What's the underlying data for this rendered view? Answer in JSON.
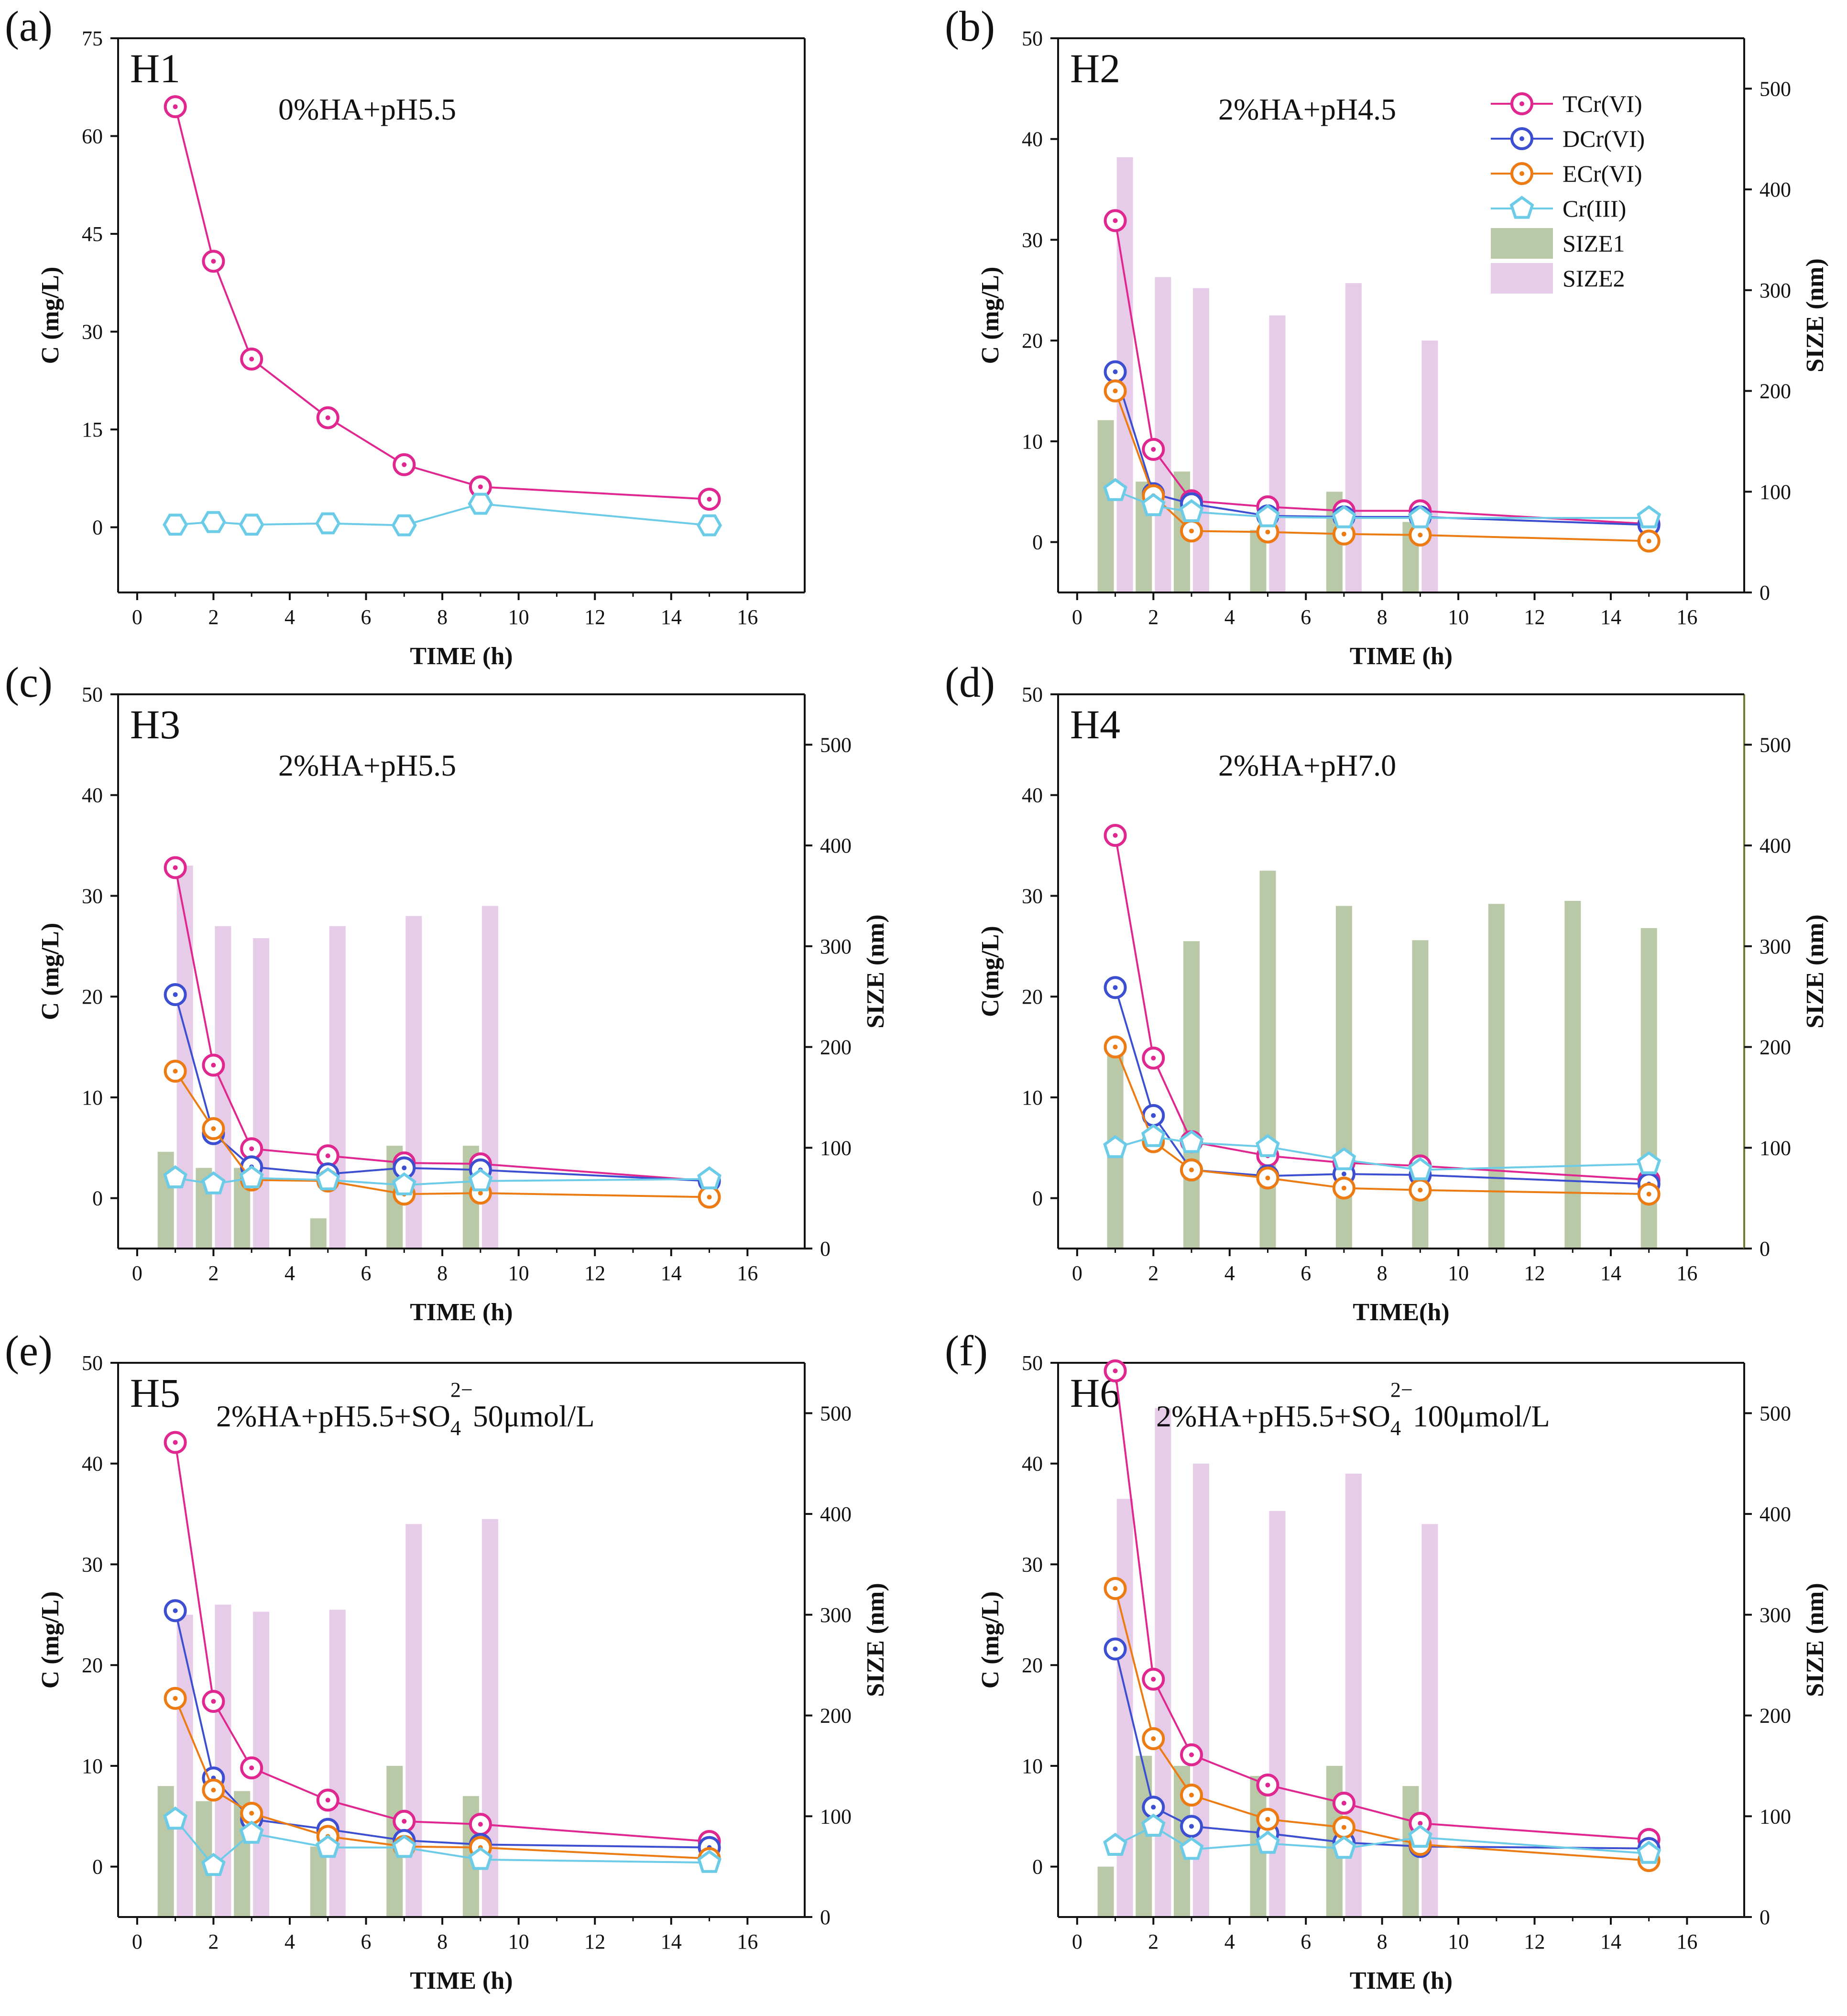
{
  "colors": {
    "TCr": "#e0268f",
    "DCr": "#3b4fd0",
    "ECr": "#ec7b14",
    "Cr3": "#6ccbe6",
    "SIZE1": "#b9c8a6",
    "SIZE2": "#e6cce8",
    "axis": "#111111"
  },
  "legend": {
    "TCr": "TCr(VI)",
    "DCr": "DCr(VI)",
    "ECr": "ECr(VI)",
    "Cr3": "Cr(III)",
    "SIZE1": "SIZE1",
    "SIZE2": "SIZE2"
  },
  "chart_data": [
    {
      "type": "line",
      "letter": "(a)",
      "tag": "H1",
      "condition": "0%HA+pH5.5",
      "xlabel": "TIME (h)",
      "ylabel": "C (mg/L)",
      "xlim": [
        -0.5,
        17.5
      ],
      "ylim": [
        -10,
        75
      ],
      "xticks": [
        "0",
        "2",
        "4",
        "6",
        "8",
        "10",
        "12",
        "14",
        "16"
      ],
      "yticks": [
        "0",
        "15",
        "30",
        "45",
        "60",
        "75"
      ],
      "has_right_axis": false,
      "series": [
        {
          "key": "TCr",
          "name": "TCr(VI)",
          "marker": "circle",
          "x": [
            1,
            2,
            3,
            5,
            7,
            9,
            15
          ],
          "y": [
            64.5,
            40.8,
            25.8,
            16.8,
            9.6,
            6.2,
            4.3
          ]
        },
        {
          "key": "Cr3",
          "name": "Cr(III)",
          "marker": "hexagon",
          "x": [
            1,
            2,
            3,
            5,
            7,
            9,
            15
          ],
          "y": [
            0.4,
            0.8,
            0.4,
            0.6,
            0.3,
            3.6,
            0.3
          ]
        }
      ],
      "bars": []
    },
    {
      "type": "line+bar",
      "letter": "(b)",
      "tag": "H2",
      "condition": "2%HA+pH4.5",
      "xlabel": "TIME (h)",
      "ylabel": "C (mg/L)",
      "ylabel_right": "SIZE (nm)",
      "xlim": [
        -0.5,
        17.5
      ],
      "ylim": [
        -5,
        50
      ],
      "ylim_right": [
        0,
        550
      ],
      "xticks": [
        "0",
        "2",
        "4",
        "6",
        "8",
        "10",
        "12",
        "14",
        "16"
      ],
      "yticks": [
        "0",
        "10",
        "20",
        "30",
        "40",
        "50"
      ],
      "yticks_right": [
        "0",
        "100",
        "200",
        "300",
        "400",
        "500"
      ],
      "has_right_axis": true,
      "show_legend": true,
      "series": [
        {
          "key": "TCr",
          "name": "TCr(VI)",
          "marker": "circle",
          "x": [
            1,
            2,
            3,
            5,
            7,
            9,
            15
          ],
          "y": [
            31.9,
            9.2,
            4.1,
            3.5,
            3.1,
            3.1,
            1.8
          ]
        },
        {
          "key": "DCr",
          "name": "DCr(VI)",
          "marker": "circle",
          "x": [
            1,
            2,
            3,
            5,
            7,
            9,
            15
          ],
          "y": [
            16.9,
            4.8,
            3.8,
            2.6,
            2.5,
            2.5,
            1.7
          ]
        },
        {
          "key": "ECr",
          "name": "ECr(VI)",
          "marker": "circle",
          "x": [
            1,
            2,
            3,
            5,
            7,
            9,
            15
          ],
          "y": [
            15.0,
            4.6,
            1.1,
            1.0,
            0.8,
            0.7,
            0.1
          ]
        },
        {
          "key": "Cr3",
          "name": "Cr(III)",
          "marker": "pentagon",
          "x": [
            1,
            2,
            3,
            5,
            7,
            9,
            15
          ],
          "y": [
            5.1,
            3.6,
            3.0,
            2.5,
            2.4,
            2.4,
            2.4
          ]
        }
      ],
      "bars": [
        {
          "key": "SIZE1",
          "name": "SIZE1",
          "x": [
            1,
            2,
            3,
            5,
            7,
            9
          ],
          "values": [
            171,
            110,
            120,
            62,
            100,
            70
          ]
        },
        {
          "key": "SIZE2",
          "name": "SIZE2",
          "x": [
            1,
            2,
            3,
            5,
            7,
            9
          ],
          "values": [
            432,
            313,
            302,
            275,
            307,
            250
          ]
        }
      ]
    },
    {
      "type": "line+bar",
      "letter": "(c)",
      "tag": "H3",
      "condition": "2%HA+pH5.5",
      "xlabel": "TIME (h)",
      "ylabel": "C (mg/L)",
      "ylabel_right": "SIZE (nm)",
      "xlim": [
        -0.5,
        17.5
      ],
      "ylim": [
        -5,
        50
      ],
      "ylim_right": [
        0,
        550
      ],
      "xticks": [
        "0",
        "2",
        "4",
        "6",
        "8",
        "10",
        "12",
        "14",
        "16"
      ],
      "yticks": [
        "0",
        "10",
        "20",
        "30",
        "40",
        "50"
      ],
      "yticks_right": [
        "0",
        "100",
        "200",
        "300",
        "400",
        "500"
      ],
      "has_right_axis": true,
      "series": [
        {
          "key": "TCr",
          "name": "TCr(VI)",
          "marker": "circle",
          "x": [
            1,
            2,
            3,
            5,
            7,
            9,
            15
          ],
          "y": [
            32.8,
            13.2,
            4.9,
            4.2,
            3.5,
            3.4,
            1.7
          ]
        },
        {
          "key": "DCr",
          "name": "DCr(VI)",
          "marker": "circle",
          "x": [
            1,
            2,
            3,
            5,
            7,
            9,
            15
          ],
          "y": [
            20.2,
            6.4,
            3.1,
            2.4,
            3.0,
            2.8,
            1.7
          ]
        },
        {
          "key": "ECr",
          "name": "ECr(VI)",
          "marker": "circle",
          "x": [
            1,
            2,
            3,
            5,
            7,
            9,
            15
          ],
          "y": [
            12.6,
            6.9,
            1.8,
            1.7,
            0.4,
            0.5,
            0.1
          ]
        },
        {
          "key": "Cr3",
          "name": "Cr(III)",
          "marker": "pentagon",
          "x": [
            1,
            2,
            3,
            5,
            7,
            9,
            15
          ],
          "y": [
            2.0,
            1.4,
            2.0,
            1.8,
            1.3,
            1.7,
            1.9
          ]
        }
      ],
      "bars": [
        {
          "key": "SIZE1",
          "name": "SIZE1",
          "x": [
            1,
            2,
            3,
            5,
            7,
            9
          ],
          "values": [
            96,
            80,
            80,
            30,
            102,
            102
          ]
        },
        {
          "key": "SIZE2",
          "name": "SIZE2",
          "x": [
            1,
            2,
            3,
            5,
            7,
            9
          ],
          "values": [
            380,
            320,
            308,
            320,
            330,
            340
          ]
        }
      ]
    },
    {
      "type": "line+bar",
      "letter": "(d)",
      "tag": "H4",
      "condition": "2%HA+pH7.0",
      "xlabel": "TIME(h)",
      "ylabel": "C(mg/L)",
      "ylabel_right": "SIZE (nm)",
      "xlim": [
        -0.5,
        17.5
      ],
      "ylim": [
        -5,
        50
      ],
      "ylim_right": [
        0,
        550
      ],
      "xticks": [
        "0",
        "2",
        "4",
        "6",
        "8",
        "10",
        "12",
        "14",
        "16"
      ],
      "yticks": [
        "0",
        "10",
        "20",
        "30",
        "40",
        "50"
      ],
      "yticks_right": [
        "0",
        "100",
        "200",
        "300",
        "400",
        "500"
      ],
      "has_right_axis": true,
      "series": [
        {
          "key": "TCr",
          "name": "TCr(VI)",
          "marker": "circle",
          "x": [
            1,
            2,
            3,
            5,
            7,
            9,
            15
          ],
          "y": [
            36.0,
            13.9,
            5.6,
            4.2,
            3.5,
            3.2,
            1.8
          ]
        },
        {
          "key": "DCr",
          "name": "DCr(VI)",
          "marker": "circle",
          "x": [
            1,
            2,
            3,
            5,
            7,
            9,
            15
          ],
          "y": [
            20.9,
            8.2,
            2.8,
            2.2,
            2.4,
            2.3,
            1.4
          ]
        },
        {
          "key": "ECr",
          "name": "ECr(VI)",
          "marker": "circle",
          "x": [
            1,
            2,
            3,
            5,
            7,
            9,
            15
          ],
          "y": [
            15.0,
            5.6,
            2.8,
            2.0,
            1.0,
            0.8,
            0.4
          ]
        },
        {
          "key": "Cr3",
          "name": "Cr(III)",
          "marker": "pentagon",
          "x": [
            1,
            2,
            3,
            5,
            7,
            9,
            15
          ],
          "y": [
            5.0,
            6.1,
            5.5,
            5.1,
            3.8,
            2.8,
            3.4
          ]
        }
      ],
      "bars": [
        {
          "key": "SIZE1",
          "name": "SIZE1",
          "x": [
            1,
            3,
            5,
            7,
            9,
            11,
            13,
            15
          ],
          "values": [
            200,
            305,
            375,
            340,
            306,
            342,
            345,
            318
          ]
        }
      ]
    },
    {
      "type": "line+bar",
      "letter": "(e)",
      "tag": "H5",
      "condition_pre": "2%HA+pH5.5+SO",
      "condition_sub": "4",
      "condition_sup": "2−",
      "condition_post": "50μmol/L",
      "xlabel": "TIME (h)",
      "ylabel": "C (mg/L)",
      "ylabel_right": "SIZE (nm)",
      "xlim": [
        -0.5,
        17.5
      ],
      "ylim": [
        -5,
        50
      ],
      "ylim_right": [
        0,
        550
      ],
      "xticks": [
        "0",
        "2",
        "4",
        "6",
        "8",
        "10",
        "12",
        "14",
        "16"
      ],
      "yticks": [
        "0",
        "10",
        "20",
        "30",
        "40",
        "50"
      ],
      "yticks_right": [
        "0",
        "100",
        "200",
        "300",
        "400",
        "500"
      ],
      "has_right_axis": true,
      "series": [
        {
          "key": "TCr",
          "name": "TCr(VI)",
          "marker": "circle",
          "x": [
            1,
            2,
            3,
            5,
            7,
            9,
            15
          ],
          "y": [
            42.1,
            16.4,
            9.8,
            6.6,
            4.5,
            4.2,
            2.5
          ]
        },
        {
          "key": "DCr",
          "name": "DCr(VI)",
          "marker": "circle",
          "x": [
            1,
            2,
            3,
            5,
            7,
            9,
            15
          ],
          "y": [
            25.4,
            8.8,
            4.7,
            3.7,
            2.6,
            2.2,
            1.9
          ]
        },
        {
          "key": "ECr",
          "name": "ECr(VI)",
          "marker": "circle",
          "x": [
            1,
            2,
            3,
            5,
            7,
            9,
            15
          ],
          "y": [
            16.7,
            7.6,
            5.3,
            3.0,
            2.0,
            1.9,
            0.8
          ]
        },
        {
          "key": "Cr3",
          "name": "Cr(III)",
          "marker": "pentagon",
          "x": [
            1,
            2,
            3,
            5,
            7,
            9,
            15
          ],
          "y": [
            4.7,
            0.1,
            3.3,
            1.9,
            1.9,
            0.7,
            0.4
          ]
        }
      ],
      "bars": [
        {
          "key": "SIZE1",
          "name": "SIZE1",
          "x": [
            1,
            2,
            3,
            5,
            7,
            9
          ],
          "values": [
            130,
            115,
            125,
            70,
            150,
            120
          ]
        },
        {
          "key": "SIZE2",
          "name": "SIZE2",
          "x": [
            1,
            2,
            3,
            5,
            7,
            9
          ],
          "values": [
            300,
            310,
            303,
            305,
            390,
            395
          ]
        }
      ]
    },
    {
      "type": "line+bar",
      "letter": "(f)",
      "tag": "H6",
      "condition_pre": "2%HA+pH5.5+SO",
      "condition_sub": "4",
      "condition_sup": "2−",
      "condition_post": "100μmol/L",
      "xlabel": "TIME (h)",
      "ylabel": "C (mg/L)",
      "ylabel_right": "SIZE (nm)",
      "xlim": [
        -0.5,
        17.5
      ],
      "ylim": [
        -5,
        50
      ],
      "ylim_right": [
        0,
        550
      ],
      "xticks": [
        "0",
        "2",
        "4",
        "6",
        "8",
        "10",
        "12",
        "14",
        "16"
      ],
      "yticks": [
        "0",
        "10",
        "20",
        "30",
        "40",
        "50"
      ],
      "yticks_right": [
        "0",
        "100",
        "200",
        "300",
        "400",
        "500"
      ],
      "has_right_axis": true,
      "series": [
        {
          "key": "TCr",
          "name": "TCr(VI)",
          "marker": "circle",
          "x": [
            1,
            2,
            3,
            5,
            7,
            9,
            15
          ],
          "y": [
            49.2,
            18.6,
            11.1,
            8.1,
            6.3,
            4.3,
            2.7
          ]
        },
        {
          "key": "DCr",
          "name": "DCr(VI)",
          "marker": "circle",
          "x": [
            1,
            2,
            3,
            5,
            7,
            9,
            15
          ],
          "y": [
            21.6,
            5.9,
            4.0,
            3.3,
            2.4,
            2.0,
            1.8
          ]
        },
        {
          "key": "ECr",
          "name": "ECr(VI)",
          "marker": "circle",
          "x": [
            1,
            2,
            3,
            5,
            7,
            9,
            15
          ],
          "y": [
            27.6,
            12.7,
            7.1,
            4.7,
            3.9,
            2.2,
            0.6
          ]
        },
        {
          "key": "Cr3",
          "name": "Cr(III)",
          "marker": "pentagon",
          "x": [
            1,
            2,
            3,
            5,
            7,
            9,
            15
          ],
          "y": [
            2.1,
            4.0,
            1.7,
            2.3,
            1.8,
            2.9,
            1.3
          ]
        }
      ],
      "bars": [
        {
          "key": "SIZE1",
          "name": "SIZE1",
          "x": [
            1,
            2,
            3,
            5,
            7,
            9
          ],
          "values": [
            50,
            160,
            150,
            140,
            150,
            130
          ]
        },
        {
          "key": "SIZE2",
          "name": "SIZE2",
          "x": [
            1,
            2,
            3,
            5,
            7,
            9
          ],
          "values": [
            415,
            505,
            450,
            403,
            440,
            390
          ]
        }
      ]
    }
  ]
}
